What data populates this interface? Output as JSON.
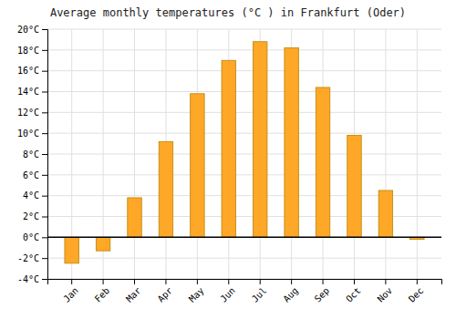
{
  "chart_data": {
    "type": "bar",
    "title": "Average monthly temperatures (°C ) in Frankfurt (Oder)",
    "categories": [
      "Jan",
      "Feb",
      "Mar",
      "Apr",
      "May",
      "Jun",
      "Jul",
      "Aug",
      "Sep",
      "Oct",
      "Nov",
      "Dec"
    ],
    "values": [
      -2.5,
      -1.3,
      3.8,
      9.2,
      13.8,
      17.0,
      18.8,
      18.2,
      14.4,
      9.8,
      4.5,
      -0.2
    ],
    "color": "#FFA726",
    "ylim": [
      -4,
      20
    ],
    "yticks": [
      {
        "value": -4,
        "label": "-4°C"
      },
      {
        "value": -2,
        "label": "-2°C"
      },
      {
        "value": 0,
        "label": "0°C"
      },
      {
        "value": 2,
        "label": "2°C"
      },
      {
        "value": 4,
        "label": "4°C"
      },
      {
        "value": 6,
        "label": "6°C"
      },
      {
        "value": 8,
        "label": "8°C"
      },
      {
        "value": 10,
        "label": "10°C"
      },
      {
        "value": 12,
        "label": "12°C"
      },
      {
        "value": 14,
        "label": "14°C"
      },
      {
        "value": 16,
        "label": "16°C"
      },
      {
        "value": 18,
        "label": "18°C"
      },
      {
        "value": 20,
        "label": "20°C"
      }
    ],
    "grid": true
  }
}
